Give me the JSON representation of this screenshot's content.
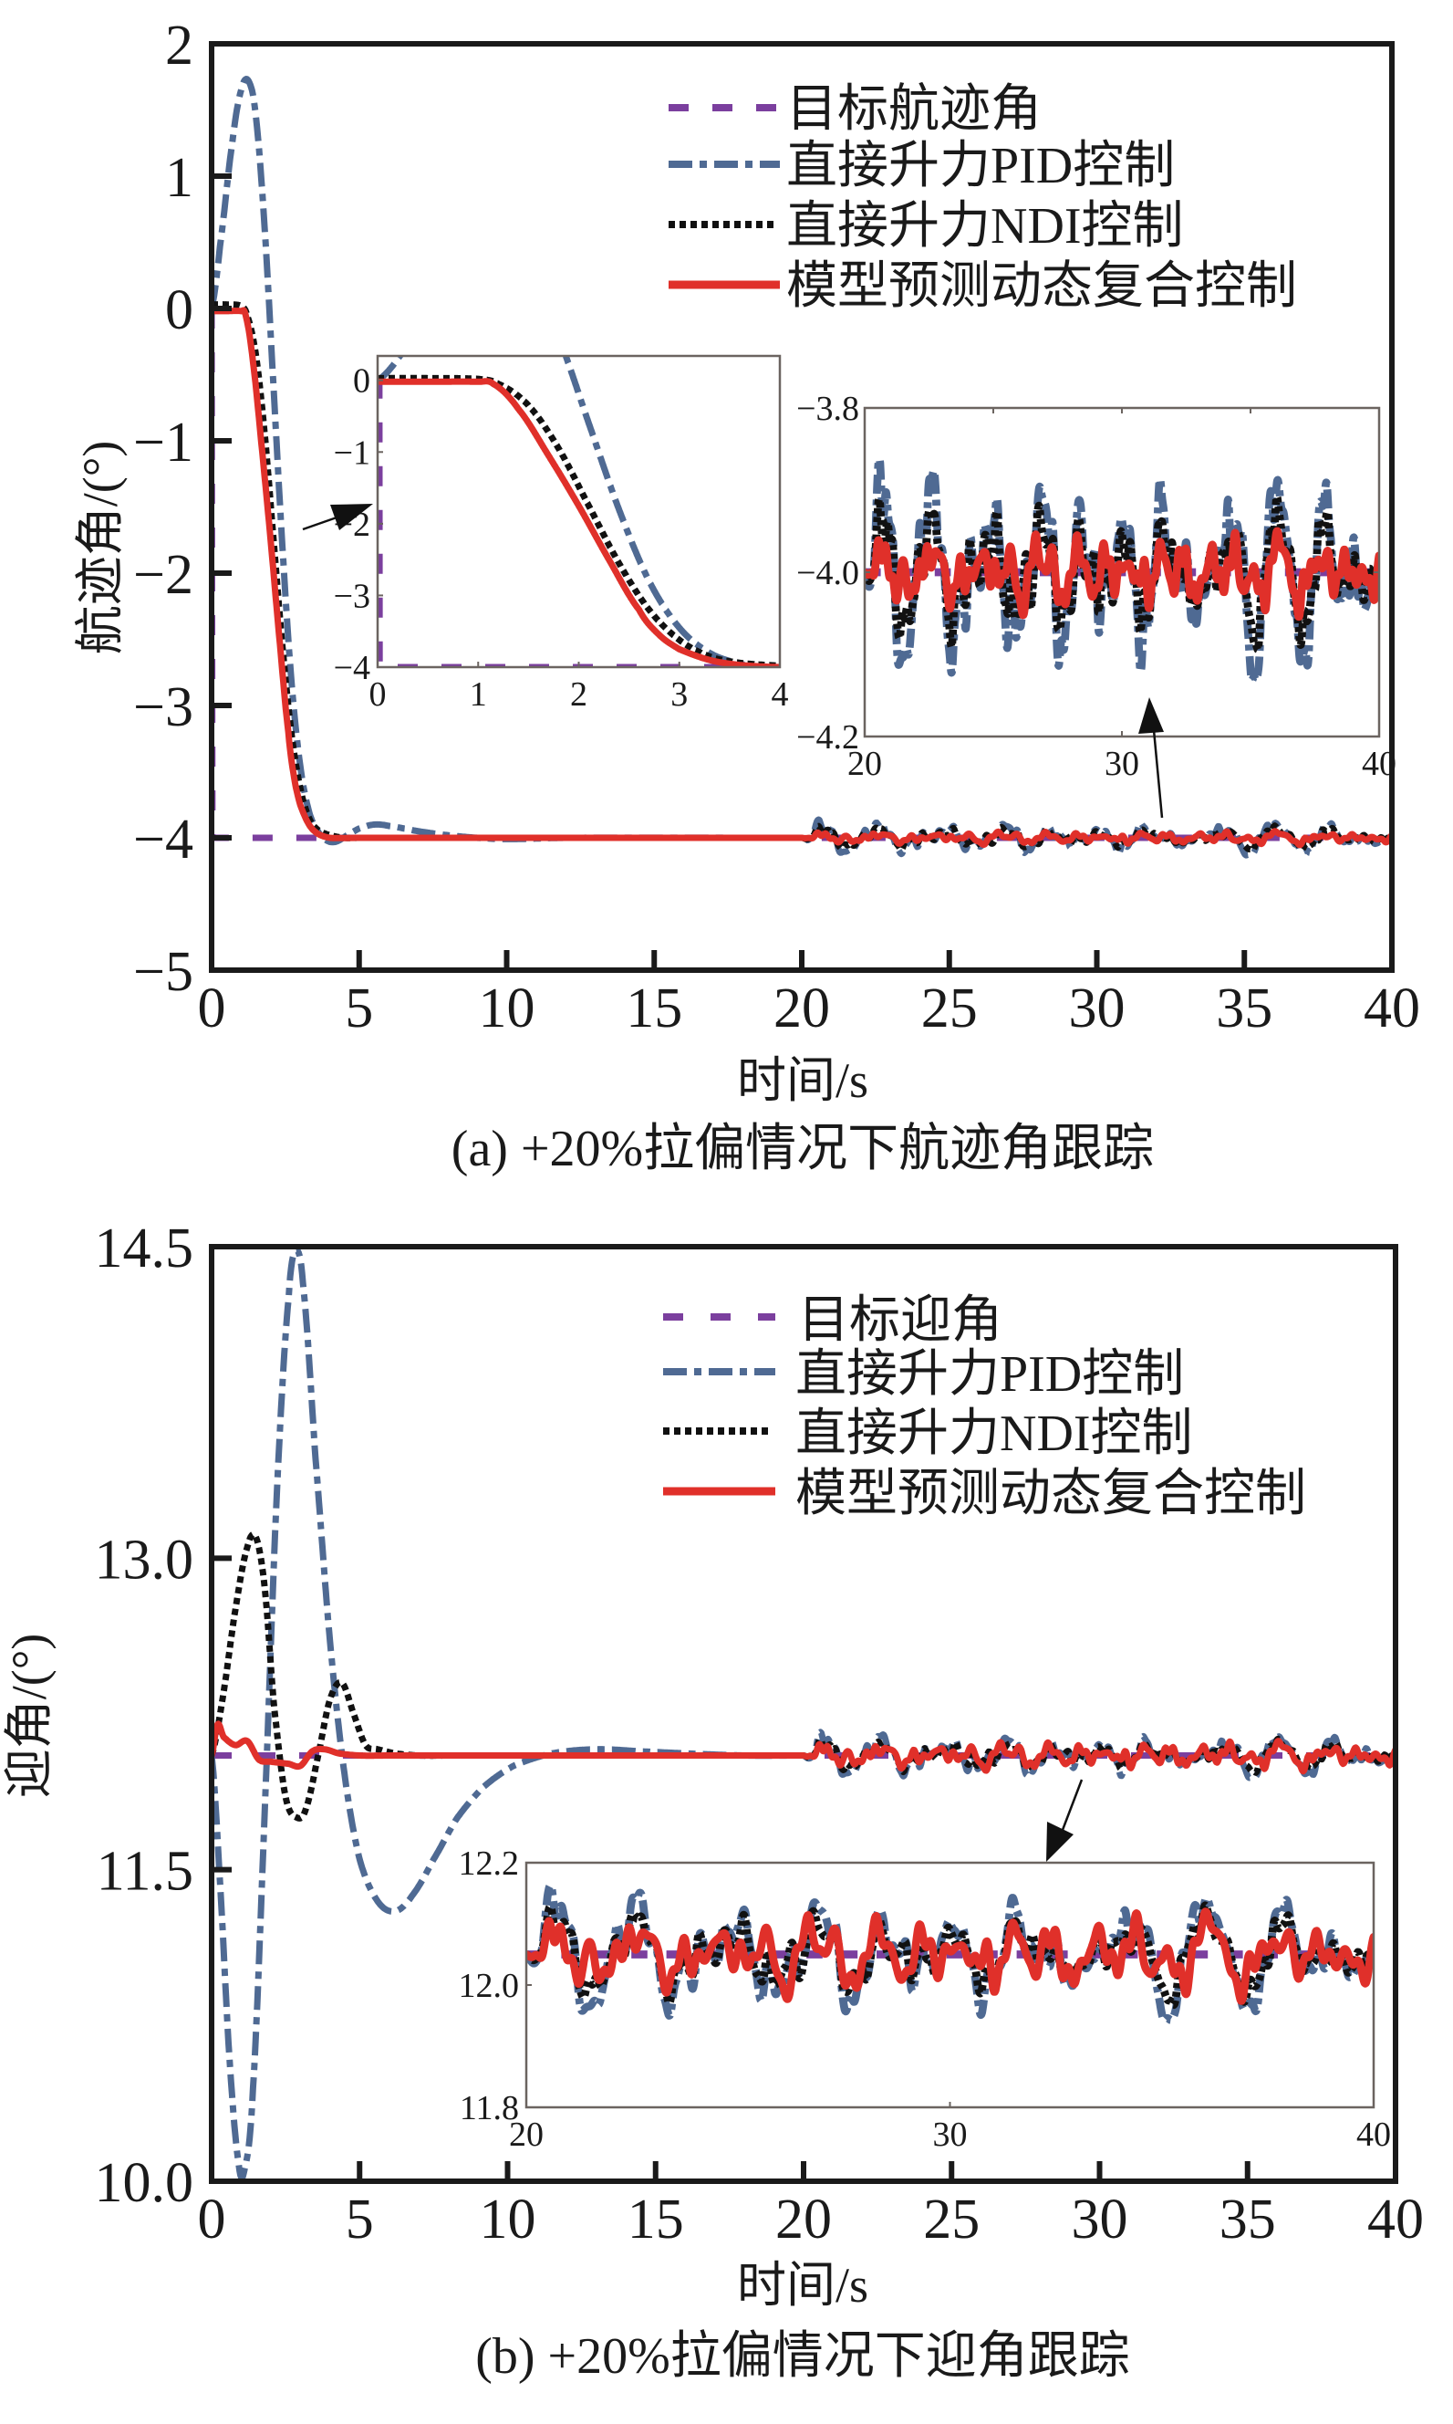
{
  "colors": {
    "target": "#7b3f9e",
    "pid": "#4f6a93",
    "ndi": "#111111",
    "mpc": "#e0302a",
    "axis": "#1a1a1a",
    "inset_frame": "#6b6460"
  },
  "chart_data": [
    {
      "id": "a",
      "type": "line",
      "title": "",
      "caption": "(a) +20%拉偏情况下航迹角跟踪",
      "xlabel": "时间/s",
      "ylabel": "航迹角/(°)",
      "xlim": [
        0,
        40
      ],
      "ylim": [
        -5,
        2
      ],
      "xticks": [
        0,
        5,
        10,
        15,
        20,
        25,
        30,
        35,
        40
      ],
      "xtick_labels": [
        "0",
        "5",
        "10",
        "15",
        "20",
        "25",
        "30",
        "35",
        "40"
      ],
      "yticks": [
        2,
        1,
        0,
        -1,
        -2,
        -3,
        -4,
        -5
      ],
      "ytick_labels": [
        "2",
        "1",
        "0",
        "−1",
        "−2",
        "−3",
        "−4",
        "−5"
      ],
      "grid": false,
      "legend_position": "top-right",
      "legend": [
        "目标航迹角",
        "直接升力PID控制",
        "直接升力NDI控制",
        "模型预测动态复合控制"
      ],
      "series": [
        {
          "name": "目标航迹角",
          "style": "dashed",
          "x": [
            0,
            0.05,
            40
          ],
          "y": [
            0,
            -4,
            -4
          ]
        },
        {
          "name": "直接升力PID控制",
          "style": "dashdot",
          "x": [
            0,
            0.3,
            0.7,
            1.0,
            1.25,
            1.5,
            1.8,
            2.1,
            2.4,
            2.7,
            3.0,
            3.3,
            3.6,
            3.9,
            4.2,
            4.6,
            5.0,
            5.5,
            6.0,
            7.0,
            8.0,
            9.0,
            10.0,
            12.0,
            20.0
          ],
          "y": [
            0,
            0.5,
            1.25,
            1.65,
            1.72,
            1.45,
            0.6,
            -0.6,
            -1.8,
            -2.8,
            -3.45,
            -3.8,
            -3.95,
            -4.02,
            -4.03,
            -3.98,
            -3.93,
            -3.9,
            -3.91,
            -3.95,
            -3.98,
            -4.0,
            -4.01,
            -4.0,
            -4.0
          ]
        },
        {
          "name": "直接升力NDI控制",
          "style": "dotted",
          "x": [
            0,
            0.5,
            1.0,
            1.2,
            1.5,
            1.8,
            2.1,
            2.4,
            2.7,
            3.0,
            3.3,
            3.6,
            4.0,
            4.5,
            5.0,
            20.0
          ],
          "y": [
            0.03,
            0.03,
            0.02,
            -0.05,
            -0.35,
            -0.95,
            -1.75,
            -2.55,
            -3.2,
            -3.62,
            -3.85,
            -3.94,
            -3.98,
            -4.0,
            -4.0,
            -4.0
          ]
        },
        {
          "name": "模型预测动态复合控制",
          "style": "solid",
          "x": [
            0,
            0.5,
            1.0,
            1.15,
            1.4,
            1.7,
            2.0,
            2.3,
            2.6,
            2.8,
            3.0,
            3.3,
            3.6,
            4.0,
            5.0,
            20.0
          ],
          "y": [
            -0.02,
            -0.02,
            -0.02,
            -0.05,
            -0.4,
            -1.05,
            -1.75,
            -2.5,
            -3.2,
            -3.55,
            -3.75,
            -3.9,
            -3.97,
            -4.0,
            -4.0,
            -4.0
          ]
        }
      ],
      "noise_window": {
        "x_start": 20,
        "x_end": 40,
        "center": -4.0,
        "amplitude": {
          "pid": 0.11,
          "ndi": 0.08,
          "mpc": 0.05
        }
      },
      "insets": [
        {
          "id": "a-zoom-start",
          "xlim": [
            0,
            4
          ],
          "ylim": [
            -4,
            0.34
          ],
          "xticks": [
            0,
            1,
            2,
            3,
            4
          ],
          "xtick_labels": [
            "0",
            "1",
            "2",
            "3",
            "4"
          ],
          "yticks": [
            0,
            -1,
            -2,
            -3,
            -4
          ],
          "ytick_labels": [
            "0",
            "−1",
            "−2",
            "−3",
            "−4"
          ]
        },
        {
          "id": "a-zoom-steady",
          "xlim": [
            20,
            40
          ],
          "ylim": [
            -4.2,
            -3.8
          ],
          "xticks": [
            20,
            30,
            40
          ],
          "xtick_labels": [
            "20",
            "30",
            "40"
          ],
          "yticks": [
            -3.8,
            -4.0,
            -4.2
          ],
          "ytick_labels": [
            "−3.8",
            "−4.0",
            "−4.2"
          ]
        }
      ]
    },
    {
      "id": "b",
      "type": "line",
      "title": "",
      "caption": "(b) +20%拉偏情况下迎角跟踪",
      "xlabel": "时间/s",
      "ylabel": "迎角/(°)",
      "xlim": [
        0,
        40
      ],
      "ylim": [
        10.0,
        14.5
      ],
      "xticks": [
        0,
        5,
        10,
        15,
        20,
        25,
        30,
        35,
        40
      ],
      "xtick_labels": [
        "0",
        "5",
        "10",
        "15",
        "20",
        "25",
        "30",
        "35",
        "40"
      ],
      "yticks": [
        14.5,
        13.0,
        11.5,
        10.0
      ],
      "ytick_labels": [
        "14.5",
        "13.0",
        "11.5",
        "10.0"
      ],
      "grid": false,
      "legend_position": "top-right",
      "legend": [
        "目标迎角",
        "直接升力PID控制",
        "直接升力NDI控制",
        "模型预测动态复合控制"
      ],
      "series": [
        {
          "name": "目标迎角",
          "style": "dashed",
          "x": [
            0,
            40
          ],
          "y": [
            12.05,
            12.05
          ]
        },
        {
          "name": "直接升力PID控制",
          "style": "dashdot",
          "x": [
            0,
            0.3,
            0.6,
            0.9,
            1.1,
            1.4,
            1.8,
            2.2,
            2.6,
            2.85,
            3.1,
            3.5,
            4.0,
            4.5,
            5.0,
            5.6,
            6.2,
            6.8,
            7.5,
            8.3,
            9.2,
            10.2,
            11.5,
            13.0,
            14.5,
            16.0,
            18.0,
            20.0
          ],
          "y": [
            12.05,
            11.4,
            10.6,
            10.1,
            10.05,
            10.45,
            11.8,
            13.3,
            14.25,
            14.48,
            14.3,
            13.5,
            12.6,
            11.95,
            11.55,
            11.35,
            11.3,
            11.38,
            11.55,
            11.75,
            11.9,
            12.0,
            12.06,
            12.08,
            12.07,
            12.06,
            12.05,
            12.05
          ]
        },
        {
          "name": "直接升力NDI控制",
          "style": "dotted",
          "x": [
            0,
            0.4,
            0.8,
            1.2,
            1.5,
            1.8,
            2.1,
            2.5,
            2.9,
            3.2,
            3.6,
            4.0,
            4.4,
            4.8,
            5.2,
            5.6,
            6.2,
            7.0,
            8.0,
            20.0
          ],
          "y": [
            12.05,
            12.35,
            12.75,
            13.05,
            13.1,
            12.85,
            12.3,
            11.85,
            11.75,
            11.8,
            12.05,
            12.32,
            12.4,
            12.25,
            12.1,
            12.08,
            12.06,
            12.05,
            12.05,
            12.05
          ]
        },
        {
          "name": "模型预测动态复合控制",
          "style": "solid",
          "x": [
            0,
            0.2,
            0.4,
            0.8,
            1.2,
            1.6,
            2.0,
            2.6,
            3.0,
            3.4,
            3.8,
            4.3,
            5.0,
            6.0,
            20.0
          ],
          "y": [
            12.05,
            12.2,
            12.14,
            12.1,
            12.12,
            12.03,
            12.02,
            12.01,
            12.0,
            12.07,
            12.08,
            12.06,
            12.05,
            12.05,
            12.05
          ]
        }
      ],
      "noise_window": {
        "x_start": 20,
        "x_end": 40,
        "center": 12.05,
        "amplitude": {
          "pid": 0.09,
          "ndi": 0.07,
          "mpc": 0.07
        }
      },
      "insets": [
        {
          "id": "b-zoom-steady",
          "xlim": [
            20,
            40
          ],
          "ylim": [
            11.8,
            12.2
          ],
          "xticks": [
            20,
            30,
            40
          ],
          "xtick_labels": [
            "20",
            "30",
            "40"
          ],
          "yticks": [
            12.2,
            12.0,
            11.8
          ],
          "ytick_labels": [
            "12.2",
            "12.0",
            "11.8"
          ]
        }
      ]
    }
  ]
}
